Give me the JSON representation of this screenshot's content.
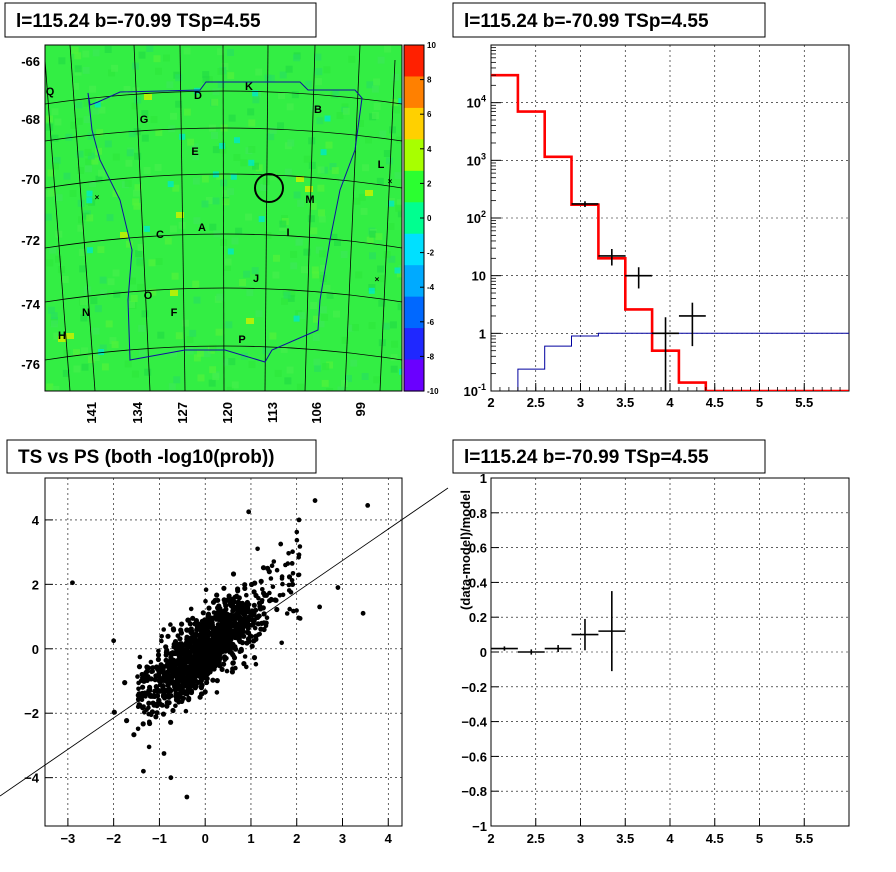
{
  "panels": {
    "skymap": {
      "title": "l=115.24 b=-70.99 TSp=4.55"
    },
    "spectrum": {
      "title": "l=115.24 b=-70.99 TSp=4.55"
    },
    "scatter": {
      "title": "TS vs PS (both -log10(prob))"
    },
    "residual": {
      "title": "l=115.24 b=-70.99 TSp=4.55"
    }
  },
  "chart_data": [
    {
      "type": "heatmap",
      "title": "l=115.24 b=-70.99 TSp=4.55",
      "colormap": [
        "#6a00ff",
        "#1f28ff",
        "#0068ff",
        "#00aaff",
        "#00e0ff",
        "#00ff90",
        "#2bff30",
        "#a8ff00",
        "#ffd000",
        "#ff8000",
        "#ff2000"
      ],
      "background_color": "#33ee44",
      "colorbar": {
        "range": [
          -10,
          10
        ],
        "ticks": [
          "10",
          "8",
          "6",
          "4",
          "2",
          "0",
          "-2",
          "-4",
          "-6",
          "-8",
          "-10"
        ]
      },
      "y_ticks": [
        "-66",
        "-68",
        "-70",
        "-72",
        "-74",
        "-76"
      ],
      "x_ticks": [
        "141",
        "134",
        "127",
        "120",
        "113",
        "106",
        "99"
      ],
      "regions": [
        "Q",
        "D",
        "K",
        "G",
        "B",
        "E",
        "L",
        "M",
        "C",
        "A",
        "I",
        "J",
        "O",
        "F",
        "N",
        "H",
        "P"
      ],
      "marker": {
        "l": 115.24,
        "b": -70.99
      }
    },
    {
      "type": "line",
      "title": "l=115.24 b=-70.99 TSp=4.55",
      "xlim": [
        2,
        6
      ],
      "x_ticks": [
        "2",
        "2.5",
        "3",
        "3.5",
        "4",
        "4.5",
        "5",
        "5.5"
      ],
      "ylim": [
        0.1,
        100000
      ],
      "yscale": "log",
      "y_ticks": [
        "10^-1",
        "1",
        "10",
        "10^2",
        "10^3",
        "10^4"
      ],
      "grid": true,
      "series": [
        {
          "color": "#ff0000",
          "style": "step",
          "bins": [
            [
              2.0,
              2.3,
              30000
            ],
            [
              2.3,
              2.6,
              7000
            ],
            [
              2.6,
              2.9,
              1150
            ],
            [
              2.9,
              3.2,
              170
            ],
            [
              3.2,
              3.5,
              20
            ],
            [
              3.5,
              3.8,
              2.6
            ],
            [
              3.8,
              4.1,
              0.5
            ],
            [
              4.1,
              4.4,
              0.14
            ],
            [
              4.4,
              6.0,
              0.1
            ]
          ]
        },
        {
          "color": "#00009f",
          "style": "step",
          "bins": [
            [
              2.0,
              2.3,
              0.05
            ],
            [
              2.3,
              2.6,
              0.24
            ],
            [
              2.6,
              2.9,
              0.6
            ],
            [
              2.9,
              3.2,
              0.9
            ],
            [
              3.2,
              6.0,
              1.0
            ]
          ]
        },
        {
          "color": "#000000",
          "style": "points",
          "points": [
            [
              3.05,
              175,
              0.15,
              20
            ],
            [
              3.35,
              22,
              0.15,
              7
            ],
            [
              3.65,
              10,
              0.15,
              4
            ],
            [
              3.95,
              1.0,
              0.15,
              0.9
            ],
            [
              4.25,
              2.0,
              0.15,
              1.4
            ]
          ]
        }
      ]
    },
    {
      "type": "scatter",
      "title": "TS vs PS (both -log10(prob))",
      "xlim": [
        -3.5,
        4.3
      ],
      "x_ticks": [
        "-3",
        "-2",
        "-1",
        "0",
        "1",
        "2",
        "3",
        "4"
      ],
      "ylim": [
        -5.5,
        5.3
      ],
      "y_ticks": [
        "4",
        "2",
        "0",
        "-2",
        "-4"
      ],
      "grid": true,
      "fit_line": {
        "x1": -3.5,
        "y1": -3.5,
        "x2": 4.3,
        "y2": 4.9
      },
      "outliers": [
        [
          -2.9,
          2.05
        ],
        [
          3.55,
          4.45
        ],
        [
          3.45,
          1.1
        ],
        [
          2.4,
          4.6
        ],
        [
          2.05,
          4.0
        ],
        [
          0.95,
          4.25
        ],
        [
          -1.35,
          -3.8
        ],
        [
          -0.75,
          -4.0
        ],
        [
          -0.4,
          -4.6
        ],
        [
          -0.9,
          -3.25
        ],
        [
          -2.0,
          0.25
        ],
        [
          2.9,
          1.9
        ],
        [
          2.5,
          1.3
        ],
        [
          1.65,
          3.25
        ],
        [
          1.9,
          2.65
        ]
      ]
    },
    {
      "type": "line",
      "title": "l=115.24 b=-70.99 TSp=4.55",
      "ylabel": "(data-model)/model",
      "xlim": [
        2,
        6
      ],
      "x_ticks": [
        "2",
        "2.5",
        "3",
        "3.5",
        "4",
        "4.5",
        "5",
        "5.5"
      ],
      "ylim": [
        -1,
        1
      ],
      "y_ticks": [
        "1",
        "0.8",
        "0.6",
        "0.4",
        "0.2",
        "0",
        "-0.2",
        "-0.4",
        "-0.6",
        "-0.8",
        "-1"
      ],
      "grid": true,
      "series": [
        {
          "color": "#000000",
          "style": "points",
          "points": [
            [
              2.15,
              0.02,
              0.15,
              0.012
            ],
            [
              2.45,
              0.0,
              0.15,
              0.015
            ],
            [
              2.75,
              0.02,
              0.15,
              0.02
            ],
            [
              3.05,
              0.1,
              0.15,
              0.09
            ],
            [
              3.35,
              0.12,
              0.15,
              0.23
            ]
          ]
        }
      ]
    }
  ]
}
